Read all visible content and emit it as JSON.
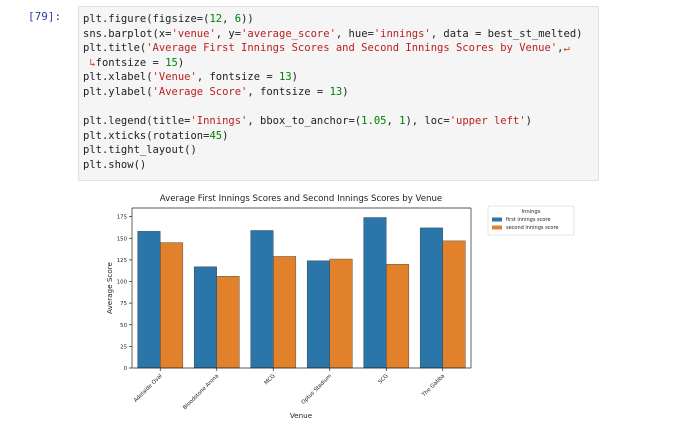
{
  "cell": {
    "prompt": "[79]:",
    "code_lines": [
      [
        {
          "t": "plt.figure(figsize=(",
          "c": ""
        },
        {
          "t": "12",
          "c": "num"
        },
        {
          "t": ", ",
          "c": ""
        },
        {
          "t": "6",
          "c": "num"
        },
        {
          "t": "))",
          "c": ""
        }
      ],
      [
        {
          "t": "sns.barplot(x=",
          "c": ""
        },
        {
          "t": "'venue'",
          "c": "str"
        },
        {
          "t": ", y=",
          "c": ""
        },
        {
          "t": "'average_score'",
          "c": "str"
        },
        {
          "t": ", hue=",
          "c": ""
        },
        {
          "t": "'innings'",
          "c": "str"
        },
        {
          "t": ", data = best_st_melted)",
          "c": ""
        }
      ],
      [
        {
          "t": "plt.title(",
          "c": ""
        },
        {
          "t": "'Average First Innings Scores and Second Innings Scores by Venue'",
          "c": "str"
        },
        {
          "t": ",",
          "c": ""
        },
        {
          "t": "↵",
          "c": "wrap"
        }
      ],
      [
        {
          "t": " ↳",
          "c": "wrap"
        },
        {
          "t": "fontsize = ",
          "c": ""
        },
        {
          "t": "15",
          "c": "num"
        },
        {
          "t": ")",
          "c": ""
        }
      ],
      [
        {
          "t": "plt.xlabel(",
          "c": ""
        },
        {
          "t": "'Venue'",
          "c": "str"
        },
        {
          "t": ", fontsize = ",
          "c": ""
        },
        {
          "t": "13",
          "c": "num"
        },
        {
          "t": ")",
          "c": ""
        }
      ],
      [
        {
          "t": "plt.ylabel(",
          "c": ""
        },
        {
          "t": "'Average Score'",
          "c": "str"
        },
        {
          "t": ", fontsize = ",
          "c": ""
        },
        {
          "t": "13",
          "c": "num"
        },
        {
          "t": ")",
          "c": ""
        }
      ],
      [
        {
          "t": "",
          "c": ""
        }
      ],
      [
        {
          "t": "plt.legend(title=",
          "c": ""
        },
        {
          "t": "'Innings'",
          "c": "str"
        },
        {
          "t": ", bbox_to_anchor=(",
          "c": ""
        },
        {
          "t": "1.05",
          "c": "num"
        },
        {
          "t": ", ",
          "c": ""
        },
        {
          "t": "1",
          "c": "num"
        },
        {
          "t": "), loc=",
          "c": ""
        },
        {
          "t": "'upper left'",
          "c": "str"
        },
        {
          "t": ")",
          "c": ""
        }
      ],
      [
        {
          "t": "plt.xticks(rotation=",
          "c": ""
        },
        {
          "t": "45",
          "c": "num"
        },
        {
          "t": ")",
          "c": ""
        }
      ],
      [
        {
          "t": "plt.tight_layout()",
          "c": ""
        }
      ],
      [
        {
          "t": "plt.show()",
          "c": ""
        }
      ]
    ]
  },
  "chart_data": {
    "type": "bar",
    "title": "Average First Innings Scores and Second Innings Scores by Venue",
    "xlabel": "Venue",
    "ylabel": "Average Score",
    "ylim": [
      0,
      185
    ],
    "yticks": [
      0,
      25,
      50,
      75,
      100,
      125,
      150,
      175
    ],
    "categories": [
      "Adelaide Oval",
      "Bloodstone Arena",
      "MCG",
      "Optus Stadium",
      "SCG",
      "The Gabba"
    ],
    "series": [
      {
        "name": "first innings score",
        "color": "#2a76a8",
        "values": [
          158,
          117,
          159,
          124,
          174,
          162
        ]
      },
      {
        "name": "second innings score",
        "color": "#e1812c",
        "values": [
          145,
          106,
          129,
          126,
          120,
          147
        ]
      }
    ],
    "legend": {
      "title": "Innings",
      "placement": "outside-upper-left"
    },
    "grid": false
  }
}
